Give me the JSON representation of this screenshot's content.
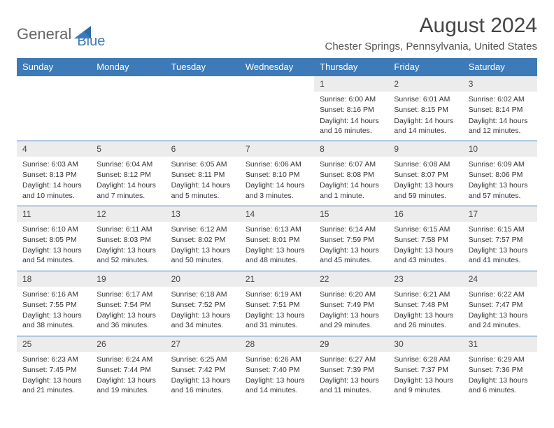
{
  "logo": {
    "part1": "General",
    "part2": "Blue"
  },
  "title": "August 2024",
  "location": "Chester Springs, Pennsylvania, United States",
  "colors": {
    "header_bg": "#3d7ab8",
    "daynum_bg": "#ececec",
    "border": "#3d7ab8",
    "text": "#333333",
    "logo_gray": "#666666",
    "logo_blue": "#3d7ab8"
  },
  "weekdays": [
    "Sunday",
    "Monday",
    "Tuesday",
    "Wednesday",
    "Thursday",
    "Friday",
    "Saturday"
  ],
  "weeks": [
    [
      null,
      null,
      null,
      null,
      {
        "d": "1",
        "sr": "6:00 AM",
        "ss": "8:16 PM",
        "dl": "14 hours and 16 minutes."
      },
      {
        "d": "2",
        "sr": "6:01 AM",
        "ss": "8:15 PM",
        "dl": "14 hours and 14 minutes."
      },
      {
        "d": "3",
        "sr": "6:02 AM",
        "ss": "8:14 PM",
        "dl": "14 hours and 12 minutes."
      }
    ],
    [
      {
        "d": "4",
        "sr": "6:03 AM",
        "ss": "8:13 PM",
        "dl": "14 hours and 10 minutes."
      },
      {
        "d": "5",
        "sr": "6:04 AM",
        "ss": "8:12 PM",
        "dl": "14 hours and 7 minutes."
      },
      {
        "d": "6",
        "sr": "6:05 AM",
        "ss": "8:11 PM",
        "dl": "14 hours and 5 minutes."
      },
      {
        "d": "7",
        "sr": "6:06 AM",
        "ss": "8:10 PM",
        "dl": "14 hours and 3 minutes."
      },
      {
        "d": "8",
        "sr": "6:07 AM",
        "ss": "8:08 PM",
        "dl": "14 hours and 1 minute."
      },
      {
        "d": "9",
        "sr": "6:08 AM",
        "ss": "8:07 PM",
        "dl": "13 hours and 59 minutes."
      },
      {
        "d": "10",
        "sr": "6:09 AM",
        "ss": "8:06 PM",
        "dl": "13 hours and 57 minutes."
      }
    ],
    [
      {
        "d": "11",
        "sr": "6:10 AM",
        "ss": "8:05 PM",
        "dl": "13 hours and 54 minutes."
      },
      {
        "d": "12",
        "sr": "6:11 AM",
        "ss": "8:03 PM",
        "dl": "13 hours and 52 minutes."
      },
      {
        "d": "13",
        "sr": "6:12 AM",
        "ss": "8:02 PM",
        "dl": "13 hours and 50 minutes."
      },
      {
        "d": "14",
        "sr": "6:13 AM",
        "ss": "8:01 PM",
        "dl": "13 hours and 48 minutes."
      },
      {
        "d": "15",
        "sr": "6:14 AM",
        "ss": "7:59 PM",
        "dl": "13 hours and 45 minutes."
      },
      {
        "d": "16",
        "sr": "6:15 AM",
        "ss": "7:58 PM",
        "dl": "13 hours and 43 minutes."
      },
      {
        "d": "17",
        "sr": "6:15 AM",
        "ss": "7:57 PM",
        "dl": "13 hours and 41 minutes."
      }
    ],
    [
      {
        "d": "18",
        "sr": "6:16 AM",
        "ss": "7:55 PM",
        "dl": "13 hours and 38 minutes."
      },
      {
        "d": "19",
        "sr": "6:17 AM",
        "ss": "7:54 PM",
        "dl": "13 hours and 36 minutes."
      },
      {
        "d": "20",
        "sr": "6:18 AM",
        "ss": "7:52 PM",
        "dl": "13 hours and 34 minutes."
      },
      {
        "d": "21",
        "sr": "6:19 AM",
        "ss": "7:51 PM",
        "dl": "13 hours and 31 minutes."
      },
      {
        "d": "22",
        "sr": "6:20 AM",
        "ss": "7:49 PM",
        "dl": "13 hours and 29 minutes."
      },
      {
        "d": "23",
        "sr": "6:21 AM",
        "ss": "7:48 PM",
        "dl": "13 hours and 26 minutes."
      },
      {
        "d": "24",
        "sr": "6:22 AM",
        "ss": "7:47 PM",
        "dl": "13 hours and 24 minutes."
      }
    ],
    [
      {
        "d": "25",
        "sr": "6:23 AM",
        "ss": "7:45 PM",
        "dl": "13 hours and 21 minutes."
      },
      {
        "d": "26",
        "sr": "6:24 AM",
        "ss": "7:44 PM",
        "dl": "13 hours and 19 minutes."
      },
      {
        "d": "27",
        "sr": "6:25 AM",
        "ss": "7:42 PM",
        "dl": "13 hours and 16 minutes."
      },
      {
        "d": "28",
        "sr": "6:26 AM",
        "ss": "7:40 PM",
        "dl": "13 hours and 14 minutes."
      },
      {
        "d": "29",
        "sr": "6:27 AM",
        "ss": "7:39 PM",
        "dl": "13 hours and 11 minutes."
      },
      {
        "d": "30",
        "sr": "6:28 AM",
        "ss": "7:37 PM",
        "dl": "13 hours and 9 minutes."
      },
      {
        "d": "31",
        "sr": "6:29 AM",
        "ss": "7:36 PM",
        "dl": "13 hours and 6 minutes."
      }
    ]
  ],
  "labels": {
    "sunrise": "Sunrise:",
    "sunset": "Sunset:",
    "daylight": "Daylight:"
  }
}
